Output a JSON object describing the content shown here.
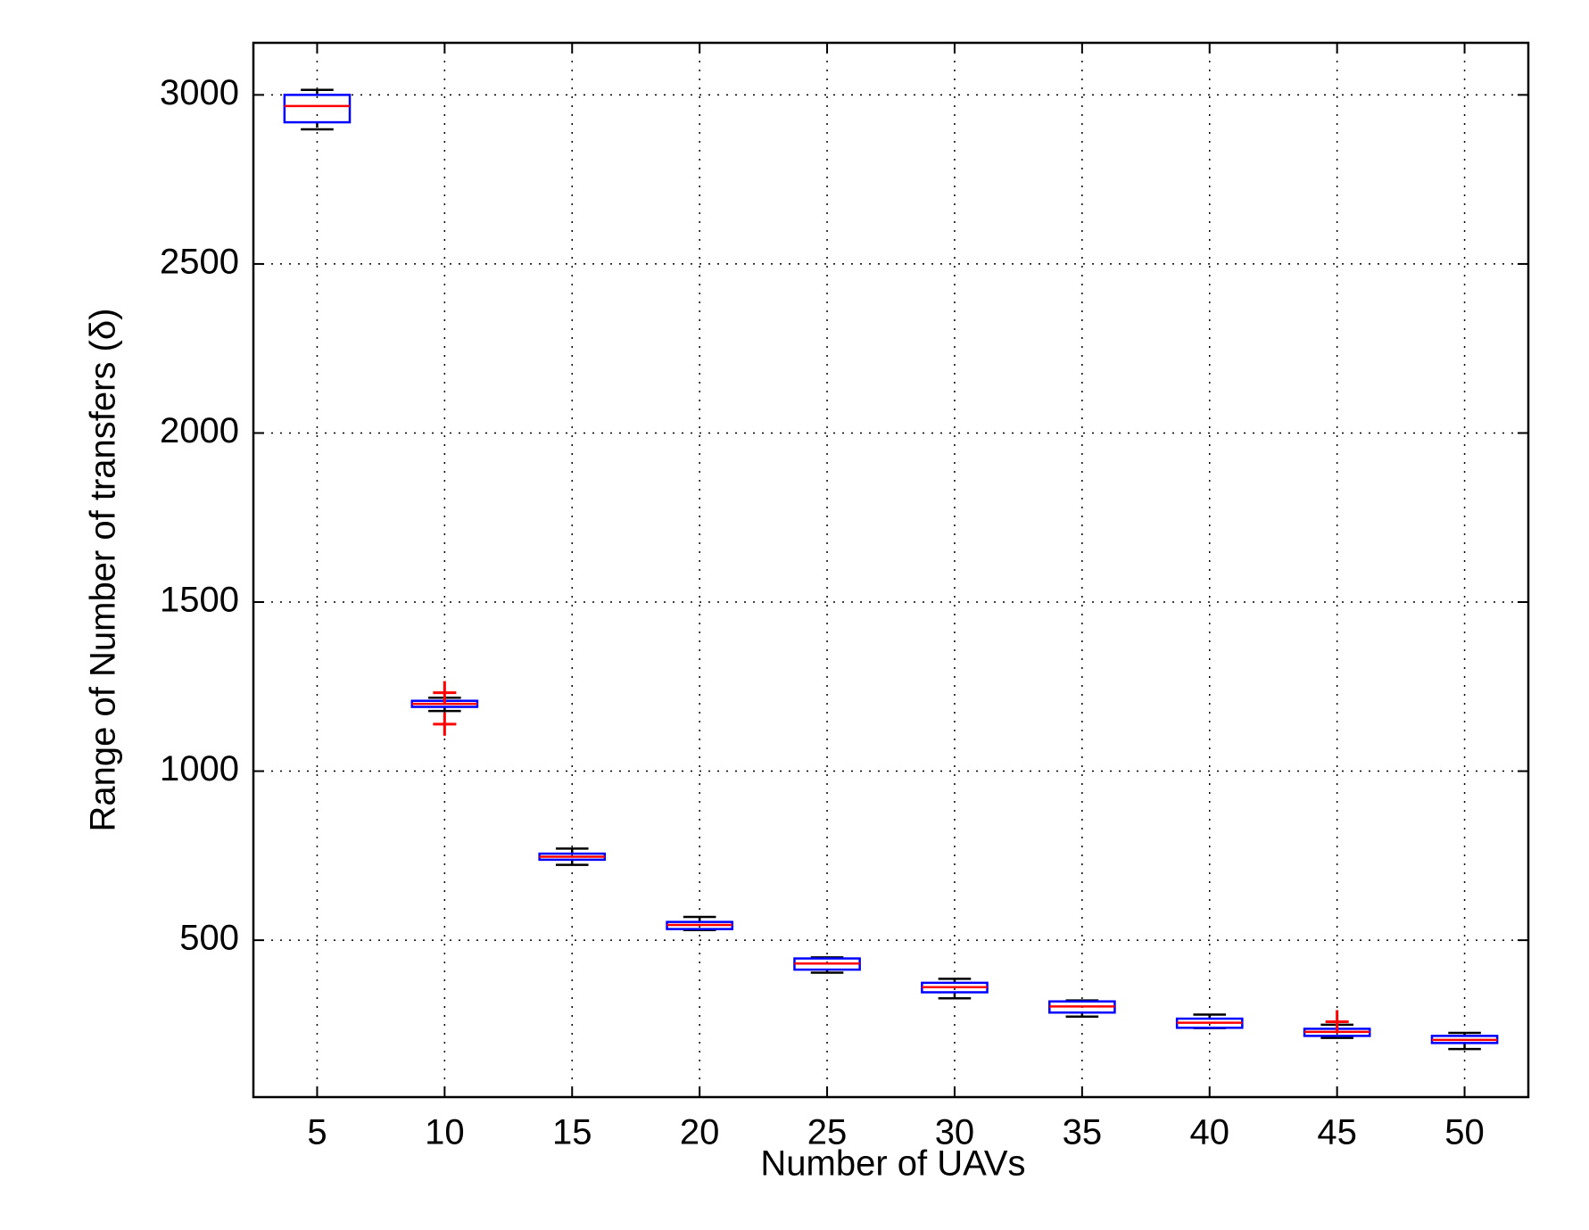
{
  "chart_data": {
    "type": "box",
    "xlabel": "Number of UAVs",
    "ylabel": "Range of Number of transfers (δ)",
    "x": [
      5,
      10,
      15,
      20,
      25,
      30,
      35,
      40,
      45,
      50
    ],
    "boxes": [
      {
        "min": 2898,
        "q1": 2919,
        "median": 2967,
        "q3": 3000,
        "max": 3015,
        "outliers": []
      },
      {
        "min": 1178,
        "q1": 1190,
        "median": 1199,
        "q3": 1208,
        "max": 1217,
        "outliers": [
          1232,
          1139
        ]
      },
      {
        "min": 723,
        "q1": 738,
        "median": 747,
        "q3": 756,
        "max": 771,
        "outliers": []
      },
      {
        "min": 530,
        "q1": 533,
        "median": 545,
        "q3": 554,
        "max": 569,
        "outliers": []
      },
      {
        "min": 404,
        "q1": 413,
        "median": 431,
        "q3": 446,
        "max": 449,
        "outliers": []
      },
      {
        "min": 328,
        "q1": 346,
        "median": 361,
        "q3": 374,
        "max": 386,
        "outliers": []
      },
      {
        "min": 274,
        "q1": 286,
        "median": 304,
        "q3": 319,
        "max": 322,
        "outliers": []
      },
      {
        "min": 240,
        "q1": 241,
        "median": 256,
        "q3": 268,
        "max": 280,
        "outliers": []
      },
      {
        "min": 211,
        "q1": 217,
        "median": 229,
        "q3": 238,
        "max": 250,
        "outliers": [
          259
        ]
      },
      {
        "min": 178,
        "q1": 196,
        "median": 205,
        "q3": 217,
        "max": 226,
        "outliers": []
      }
    ],
    "box_color": "#0000ff",
    "median_color": "#ff0000",
    "whisker_color": "#000000",
    "outlier_color": "#ff0000",
    "xlim": [
      2.5,
      52.5
    ],
    "xticks": [
      5,
      10,
      15,
      20,
      25,
      30,
      35,
      40,
      45,
      50
    ],
    "ylim": [
      36,
      3154
    ],
    "yticks": [
      500,
      1000,
      1500,
      2000,
      2500,
      3000
    ],
    "grid": true
  }
}
